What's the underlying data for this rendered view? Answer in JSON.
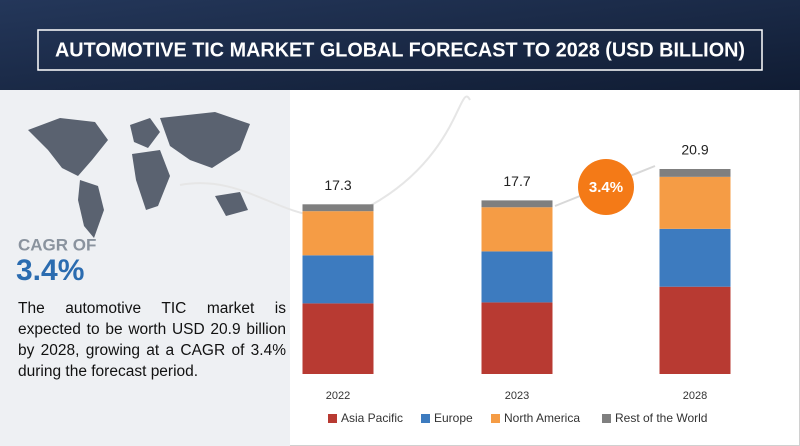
{
  "chart_data": {
    "type": "bar",
    "stacked": true,
    "title": "AUTOMOTIVE TIC MARKET GLOBAL FORECAST TO 2028 (USD BILLION)",
    "categories": [
      "2022",
      "2023",
      "2028"
    ],
    "series": [
      {
        "name": "Asia Pacific",
        "color": "#b83a32",
        "values": [
          7.2,
          7.3,
          8.9
        ]
      },
      {
        "name": "Europe",
        "color": "#3d7bbf",
        "values": [
          4.9,
          5.2,
          5.9
        ]
      },
      {
        "name": "North America",
        "color": "#f59c45",
        "values": [
          4.5,
          4.5,
          5.3
        ]
      },
      {
        "name": "Rest of the World",
        "color": "#7f7f7f",
        "values": [
          0.7,
          0.7,
          0.8
        ]
      }
    ],
    "totals": [
      17.3,
      17.7,
      20.9
    ],
    "cagr_badge": "3.4%",
    "badge_color": "#f47a17",
    "legend": "bottom"
  },
  "panel": {
    "cagr_label": "CAGR OF",
    "cagr_value": "3.4%",
    "description": "The automotive TIC market is expected to be worth USD 20.9 billion by 2028, growing at a CAGR of 3.4% during the forecast period."
  }
}
